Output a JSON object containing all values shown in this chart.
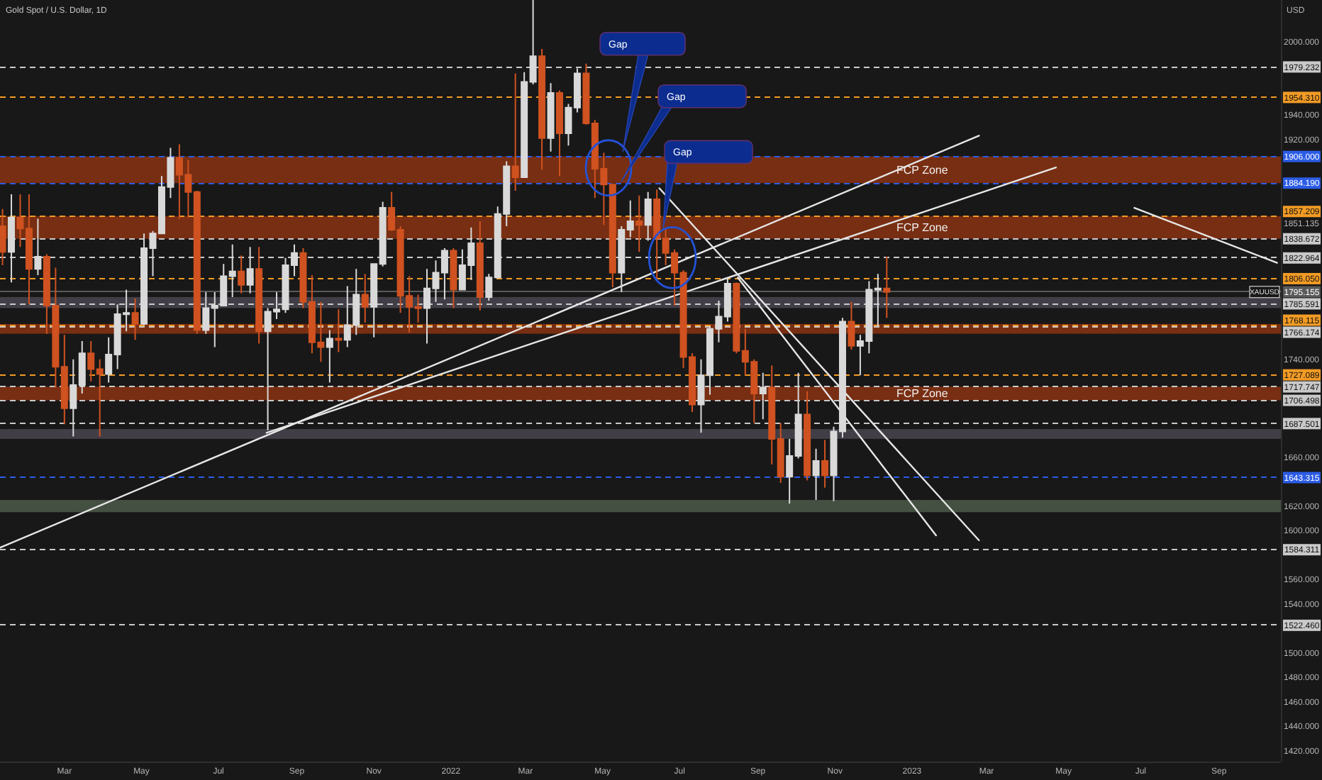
{
  "chart_data": {
    "type": "candlestick",
    "title": "Gold Spot / U.S. Dollar, 1D",
    "ylabel": "USD",
    "xlim": [
      "2021-01-09",
      "2023-10-20"
    ],
    "ylim": [
      1411,
      2034
    ],
    "xticks": [
      {
        "value": "2021-03-01",
        "label": "Mar"
      },
      {
        "value": "2021-05-01",
        "label": "May"
      },
      {
        "value": "2021-07-01",
        "label": "Jul"
      },
      {
        "value": "2021-09-01",
        "label": "Sep"
      },
      {
        "value": "2021-11-01",
        "label": "Nov"
      },
      {
        "value": "2022-01-01",
        "label": "2022"
      },
      {
        "value": "2022-03-01",
        "label": "Mar"
      },
      {
        "value": "2022-05-01",
        "label": "May"
      },
      {
        "value": "2022-07-01",
        "label": "Jul"
      },
      {
        "value": "2022-09-01",
        "label": "Sep"
      },
      {
        "value": "2022-11-01",
        "label": "Nov"
      },
      {
        "value": "2023-01-01",
        "label": "2023"
      },
      {
        "value": "2023-03-01",
        "label": "Mar"
      },
      {
        "value": "2023-05-01",
        "label": "May"
      },
      {
        "value": "2023-07-01",
        "label": "Jul"
      },
      {
        "value": "2023-09-01",
        "label": "Sep"
      }
    ],
    "yticks": [
      {
        "value": 2000,
        "label": "2000.000"
      },
      {
        "value": 1940,
        "label": "1940.000"
      },
      {
        "value": 1920,
        "label": "1920.000"
      },
      {
        "value": 1851.135,
        "label": "1851.135"
      },
      {
        "value": 1740,
        "label": "1740.000"
      },
      {
        "value": 1660,
        "label": "1660.000"
      },
      {
        "value": 1620,
        "label": "1620.000"
      },
      {
        "value": 1600,
        "label": "1600.000"
      },
      {
        "value": 1560,
        "label": "1560.000"
      },
      {
        "value": 1540,
        "label": "1540.000"
      },
      {
        "value": 1500,
        "label": "1500.000"
      },
      {
        "value": 1480,
        "label": "1480.000"
      },
      {
        "value": 1460,
        "label": "1460.000"
      },
      {
        "value": 1440,
        "label": "1440.000"
      },
      {
        "value": 1420,
        "label": "1420.000"
      }
    ],
    "series": [
      {
        "name": "XAUUSD",
        "x": [
          "2021-01-11",
          "2021-01-18",
          "2021-01-25",
          "2021-02-01",
          "2021-02-08",
          "2021-02-15",
          "2021-02-22",
          "2021-03-01",
          "2021-03-08",
          "2021-03-15",
          "2021-03-22",
          "2021-03-29",
          "2021-04-05",
          "2021-04-12",
          "2021-04-19",
          "2021-04-26",
          "2021-05-03",
          "2021-05-10",
          "2021-05-17",
          "2021-05-24",
          "2021-05-31",
          "2021-06-07",
          "2021-06-14",
          "2021-06-21",
          "2021-06-28",
          "2021-07-05",
          "2021-07-12",
          "2021-07-19",
          "2021-07-26",
          "2021-08-02",
          "2021-08-09",
          "2021-08-16",
          "2021-08-23",
          "2021-08-30",
          "2021-09-06",
          "2021-09-13",
          "2021-09-20",
          "2021-09-27",
          "2021-10-04",
          "2021-10-11",
          "2021-10-18",
          "2021-10-25",
          "2021-11-01",
          "2021-11-08",
          "2021-11-15",
          "2021-11-22",
          "2021-11-29",
          "2021-12-06",
          "2021-12-13",
          "2021-12-20",
          "2021-12-27",
          "2022-01-03",
          "2022-01-10",
          "2022-01-17",
          "2022-01-24",
          "2022-01-31",
          "2022-02-07",
          "2022-02-14",
          "2022-02-21",
          "2022-02-28",
          "2022-03-07",
          "2022-03-14",
          "2022-03-21",
          "2022-03-28",
          "2022-04-04",
          "2022-04-11",
          "2022-04-18",
          "2022-04-25",
          "2022-05-02",
          "2022-05-09",
          "2022-05-16",
          "2022-05-23",
          "2022-05-30",
          "2022-06-06",
          "2022-06-13",
          "2022-06-20",
          "2022-06-27",
          "2022-07-04",
          "2022-07-11",
          "2022-07-18",
          "2022-07-25",
          "2022-08-01",
          "2022-08-08",
          "2022-08-15",
          "2022-08-22",
          "2022-08-29",
          "2022-09-05",
          "2022-09-12",
          "2022-09-19",
          "2022-09-26",
          "2022-10-03",
          "2022-10-10",
          "2022-10-17",
          "2022-10-24",
          "2022-10-31",
          "2022-11-07",
          "2022-11-14",
          "2022-11-21",
          "2022-11-28",
          "2022-12-05",
          "2022-12-12"
        ],
        "ohlc": [
          [
            1849,
            1863,
            1817,
            1828
          ],
          [
            1828,
            1875,
            1803,
            1856
          ],
          [
            1856,
            1875,
            1832,
            1847
          ],
          [
            1847,
            1875,
            1785,
            1814
          ],
          [
            1814,
            1855,
            1809,
            1824
          ],
          [
            1824,
            1826,
            1761,
            1784
          ],
          [
            1784,
            1815,
            1717,
            1734
          ],
          [
            1734,
            1760,
            1687,
            1700
          ],
          [
            1700,
            1740,
            1677,
            1719
          ],
          [
            1719,
            1755,
            1712,
            1745
          ],
          [
            1745,
            1755,
            1722,
            1732
          ],
          [
            1732,
            1740,
            1677,
            1728
          ],
          [
            1728,
            1758,
            1721,
            1744
          ],
          [
            1744,
            1785,
            1732,
            1777
          ],
          [
            1777,
            1797,
            1763,
            1778
          ],
          [
            1778,
            1790,
            1756,
            1769
          ],
          [
            1769,
            1843,
            1768,
            1831
          ],
          [
            1831,
            1845,
            1808,
            1843
          ],
          [
            1843,
            1890,
            1843,
            1881
          ],
          [
            1881,
            1913,
            1872,
            1905
          ],
          [
            1905,
            1916,
            1855,
            1891
          ],
          [
            1891,
            1903,
            1856,
            1877
          ],
          [
            1877,
            1878,
            1761,
            1764
          ],
          [
            1764,
            1795,
            1761,
            1782
          ],
          [
            1782,
            1795,
            1750,
            1784
          ],
          [
            1784,
            1818,
            1784,
            1808
          ],
          [
            1808,
            1834,
            1791,
            1812
          ],
          [
            1812,
            1825,
            1794,
            1801
          ],
          [
            1801,
            1832,
            1794,
            1814
          ],
          [
            1814,
            1832,
            1753,
            1763
          ],
          [
            1763,
            1782,
            1682,
            1779
          ],
          [
            1779,
            1795,
            1773,
            1781
          ],
          [
            1781,
            1823,
            1778,
            1817
          ],
          [
            1817,
            1834,
            1808,
            1827
          ],
          [
            1827,
            1831,
            1782,
            1787
          ],
          [
            1787,
            1809,
            1745,
            1754
          ],
          [
            1754,
            1787,
            1738,
            1750
          ],
          [
            1750,
            1764,
            1721,
            1757
          ],
          [
            1757,
            1781,
            1746,
            1756
          ],
          [
            1756,
            1800,
            1750,
            1768
          ],
          [
            1768,
            1814,
            1760,
            1793
          ],
          [
            1793,
            1810,
            1770,
            1783
          ],
          [
            1783,
            1818,
            1758,
            1818
          ],
          [
            1818,
            1869,
            1816,
            1864
          ],
          [
            1864,
            1877,
            1845,
            1846
          ],
          [
            1846,
            1849,
            1778,
            1792
          ],
          [
            1792,
            1808,
            1762,
            1783
          ],
          [
            1783,
            1793,
            1770,
            1782
          ],
          [
            1782,
            1814,
            1753,
            1798
          ],
          [
            1798,
            1821,
            1787,
            1811
          ],
          [
            1811,
            1831,
            1789,
            1829
          ],
          [
            1829,
            1831,
            1782,
            1797
          ],
          [
            1797,
            1830,
            1797,
            1817
          ],
          [
            1817,
            1848,
            1805,
            1835
          ],
          [
            1835,
            1853,
            1780,
            1791
          ],
          [
            1791,
            1810,
            1788,
            1807
          ],
          [
            1807,
            1865,
            1806,
            1859
          ],
          [
            1859,
            1902,
            1849,
            1898
          ],
          [
            1898,
            1974,
            1878,
            1889
          ],
          [
            1889,
            1975,
            1889,
            1967
          ],
          [
            1967,
            2034,
            1965,
            1988
          ],
          [
            1988,
            1994,
            1895,
            1921
          ],
          [
            1921,
            1966,
            1910,
            1958
          ],
          [
            1958,
            1960,
            1890,
            1925
          ],
          [
            1925,
            1949,
            1915,
            1946
          ],
          [
            1946,
            1978,
            1942,
            1974
          ],
          [
            1974,
            1982,
            1932,
            1933
          ],
          [
            1933,
            1936,
            1872,
            1896
          ],
          [
            1896,
            1909,
            1850,
            1883
          ],
          [
            1883,
            1884,
            1799,
            1811
          ],
          [
            1811,
            1849,
            1795,
            1846
          ],
          [
            1846,
            1870,
            1840,
            1853
          ],
          [
            1853,
            1874,
            1828,
            1850
          ],
          [
            1850,
            1877,
            1837,
            1871
          ],
          [
            1871,
            1879,
            1805,
            1839
          ],
          [
            1839,
            1847,
            1817,
            1827
          ],
          [
            1827,
            1830,
            1784,
            1811
          ],
          [
            1811,
            1813,
            1733,
            1742
          ],
          [
            1742,
            1745,
            1697,
            1703
          ],
          [
            1703,
            1740,
            1680,
            1727
          ],
          [
            1727,
            1767,
            1711,
            1765
          ],
          [
            1765,
            1788,
            1754,
            1775
          ],
          [
            1775,
            1807,
            1771,
            1802
          ],
          [
            1802,
            1803,
            1745,
            1747
          ],
          [
            1747,
            1765,
            1727,
            1738
          ],
          [
            1738,
            1740,
            1688,
            1712
          ],
          [
            1712,
            1729,
            1691,
            1717
          ],
          [
            1717,
            1735,
            1654,
            1675
          ],
          [
            1675,
            1688,
            1639,
            1644
          ],
          [
            1644,
            1675,
            1622,
            1661
          ],
          [
            1661,
            1729,
            1659,
            1695
          ],
          [
            1695,
            1714,
            1641,
            1645
          ],
          [
            1645,
            1667,
            1625,
            1657
          ],
          [
            1657,
            1674,
            1635,
            1645
          ],
          [
            1645,
            1685,
            1624,
            1681
          ],
          [
            1681,
            1774,
            1676,
            1771
          ],
          [
            1771,
            1787,
            1748,
            1751
          ],
          [
            1751,
            1760,
            1727,
            1755
          ],
          [
            1755,
            1804,
            1745,
            1797
          ],
          [
            1797,
            1810,
            1767,
            1798
          ],
          [
            1798,
            1824,
            1774,
            1795.155
          ]
        ],
        "colors": [
          "#cf5220",
          "#d9d9d9",
          "#cf5220",
          "#cf5220",
          "#d9d9d9",
          "#cf5220",
          "#cf5220",
          "#cf5220",
          "#d9d9d9",
          "#d9d9d9",
          "#cf5220",
          "#cf5220",
          "#d9d9d9",
          "#d9d9d9",
          "#d9d9d9",
          "#cf5220",
          "#d9d9d9",
          "#d9d9d9",
          "#d9d9d9",
          "#d9d9d9",
          "#cf5220",
          "#cf5220",
          "#cf5220",
          "#d9d9d9",
          "#d9d9d9",
          "#d9d9d9",
          "#d9d9d9",
          "#cf5220",
          "#d9d9d9",
          "#cf5220",
          "#d9d9d9",
          "#d9d9d9",
          "#d9d9d9",
          "#d9d9d9",
          "#cf5220",
          "#cf5220",
          "#cf5220",
          "#d9d9d9",
          "#cf5220",
          "#d9d9d9",
          "#d9d9d9",
          "#cf5220",
          "#d9d9d9",
          "#d9d9d9",
          "#cf5220",
          "#cf5220",
          "#cf5220",
          "#cf5220",
          "#d9d9d9",
          "#d9d9d9",
          "#d9d9d9",
          "#cf5220",
          "#d9d9d9",
          "#d9d9d9",
          "#cf5220",
          "#d9d9d9",
          "#d9d9d9",
          "#d9d9d9",
          "#cf5220",
          "#d9d9d9",
          "#d9d9d9",
          "#cf5220",
          "#d9d9d9",
          "#cf5220",
          "#d9d9d9",
          "#d9d9d9",
          "#cf5220",
          "#cf5220",
          "#cf5220",
          "#cf5220",
          "#d9d9d9",
          "#d9d9d9",
          "#cf5220",
          "#d9d9d9",
          "#cf5220",
          "#cf5220",
          "#cf5220",
          "#cf5220",
          "#cf5220",
          "#d9d9d9",
          "#d9d9d9",
          "#d9d9d9",
          "#d9d9d9",
          "#cf5220",
          "#cf5220",
          "#cf5220",
          "#d9d9d9",
          "#cf5220",
          "#cf5220",
          "#d9d9d9",
          "#d9d9d9",
          "#cf5220",
          "#d9d9d9",
          "#cf5220",
          "#d9d9d9",
          "#d9d9d9",
          "#cf5220",
          "#d9d9d9",
          "#d9d9d9",
          "#d9d9d9",
          "#cf5220"
        ]
      },
      {
        "type": "line",
        "x": [
          "2021-01-09",
          "2023-02-23"
        ],
        "values": [
          1586,
          1923
        ],
        "color": "#e6e6e6"
      },
      {
        "type": "line",
        "x": [
          "2021-08-08",
          "2023-04-25"
        ],
        "values": [
          1680,
          1897
        ],
        "color": "#e6e6e6"
      },
      {
        "type": "line",
        "x": [
          "2022-06-15",
          "2023-02-23"
        ],
        "values": [
          1880,
          1592
        ],
        "color": "#e6e6e6"
      },
      {
        "type": "line",
        "x": [
          "2022-08-16",
          "2023-01-20"
        ],
        "values": [
          1807,
          1596
        ],
        "color": "#e6e6e6"
      },
      {
        "type": "line",
        "x": [
          "2023-06-26",
          "2023-10-17"
        ],
        "values": [
          1864,
          1819
        ],
        "color": "#e6e6e6"
      }
    ],
    "ref_lines": [
      {
        "axis": "y",
        "value": 1979.232,
        "label": "1979.232",
        "color": "#c9c9c9",
        "line_style": "dashed"
      },
      {
        "axis": "y",
        "value": 1954.31,
        "label": "1954.310",
        "color": "#f29b25",
        "line_style": "dashed"
      },
      {
        "axis": "y",
        "value": 1906,
        "label": "1906.000",
        "color": "#2b5ce6",
        "line_style": "dashed"
      },
      {
        "axis": "y",
        "value": 1884.19,
        "label": "1884.190",
        "color": "#2b5ce6",
        "line_style": "dashed"
      },
      {
        "axis": "y",
        "value": 1857.209,
        "label": "1857.209",
        "color": "#f29b25",
        "line_style": "dashed"
      },
      {
        "axis": "y",
        "value": 1838.672,
        "label": "1838.672",
        "color": "#c9c9c9",
        "line_style": "dashed"
      },
      {
        "axis": "y",
        "value": 1822.964,
        "label": "1822.964",
        "color": "#c9c9c9",
        "line_style": "dashed"
      },
      {
        "axis": "y",
        "value": 1806.05,
        "label": "1806.050",
        "color": "#f29b25",
        "line_style": "dashed"
      },
      {
        "axis": "y",
        "value": 1795.155,
        "label": "1795.155",
        "color": "#5a5a5a",
        "line_style": "solid"
      },
      {
        "axis": "y",
        "value": 1785.591,
        "label": "1785.591",
        "color": "#c9c9c9",
        "line_style": "dashed"
      },
      {
        "axis": "y",
        "value": 1766.174,
        "label": "1766.174",
        "color": "#c9c9c9",
        "line_style": "dashed"
      },
      {
        "axis": "y",
        "value": 1727.089,
        "label": "1727.089",
        "color": "#f29b25",
        "line_style": "dashed"
      },
      {
        "axis": "y",
        "value": 1717.747,
        "label": "1717.747",
        "color": "#c9c9c9",
        "line_style": "dashed"
      },
      {
        "axis": "y",
        "value": 1706.498,
        "label": "1706.498",
        "color": "#c9c9c9",
        "line_style": "dashed"
      },
      {
        "axis": "y",
        "value": 1687.501,
        "label": "1687.501",
        "color": "#c9c9c9",
        "line_style": "dashed"
      },
      {
        "axis": "y",
        "value": 1643.315,
        "label": "1643.315",
        "color": "#2b5ce6",
        "line_style": "dashed"
      },
      {
        "axis": "y",
        "value": 1584.311,
        "label": "1584.311",
        "color": "#c9c9c9",
        "line_style": "dashed"
      },
      {
        "axis": "y",
        "value": 1522.46,
        "label": "1522.460",
        "color": "#c9c9c9",
        "line_style": "dashed"
      },
      {
        "axis": "y",
        "value": 1768.115,
        "label": "1768.115",
        "color": "#f29b25",
        "line_style": "dashed"
      }
    ],
    "bands": [
      {
        "axis": "y",
        "from": 1884.19,
        "to": 1906,
        "label": "FCP Zone",
        "color": "#8a3212"
      },
      {
        "axis": "y",
        "from": 1838.672,
        "to": 1857.209,
        "label": "FCP Zone",
        "color": "#8a3212"
      },
      {
        "axis": "y",
        "from": 1706.498,
        "to": 1717.747,
        "label": "FCP Zone",
        "color": "#8a3212"
      },
      {
        "axis": "y",
        "from": 1782,
        "to": 1791,
        "color": "#4a4550"
      },
      {
        "axis": "y",
        "from": 1761,
        "to": 1769,
        "color": "#8a3212"
      },
      {
        "axis": "y",
        "from": 1675,
        "to": 1683,
        "color": "#4a4550"
      },
      {
        "axis": "y",
        "from": 1615,
        "to": 1625,
        "color": "#4c5a4a"
      }
    ],
    "annotations": [
      {
        "text": "Gap",
        "x": "2022-05-17",
        "y": 1910
      },
      "Gap",
      {
        "text": "Gap",
        "x": "2022-06-18",
        "y": 1847
      }
    ]
  }
}
